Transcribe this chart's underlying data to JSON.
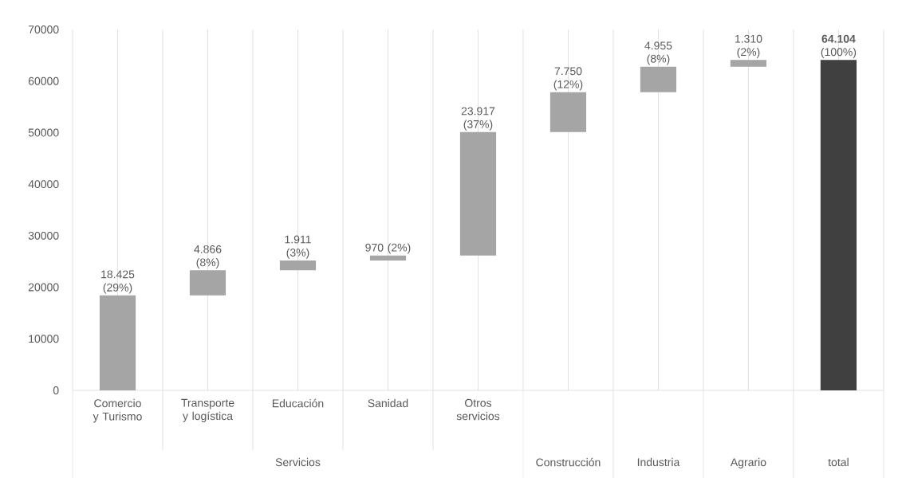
{
  "chart_data": {
    "type": "bar",
    "categories": [
      "Comercio y Turismo",
      "Transporte y logística",
      "Educación",
      "Sanidad",
      "Otros servicios",
      "Construcción",
      "Industria",
      "Agrario",
      "total"
    ],
    "values": [
      18425,
      4866,
      1911,
      970,
      23917,
      7750,
      4955,
      1310,
      64104
    ],
    "base": [
      0,
      18425,
      23291,
      25202,
      26172,
      50089,
      57839,
      62794,
      0
    ],
    "colors": [
      "#a5a5a5",
      "#a5a5a5",
      "#a5a5a5",
      "#a5a5a5",
      "#a5a5a5",
      "#a5a5a5",
      "#a5a5a5",
      "#a5a5a5",
      "#404040"
    ],
    "value_labels": [
      "18.425 (29%)",
      "4.866 (8%)",
      "1.911 (3%)",
      "970 (2%)",
      "23.917 (37%)",
      "7.750 (12%)",
      "4.955 (8%)",
      "1.310 (2%)",
      "**64.104** (100%)"
    ],
    "ylim": [
      0,
      70000
    ],
    "yticks": [
      0,
      10000,
      20000,
      30000,
      40000,
      50000,
      60000,
      70000
    ],
    "grid": "x",
    "annotations": [
      "Servicios"
    ]
  }
}
